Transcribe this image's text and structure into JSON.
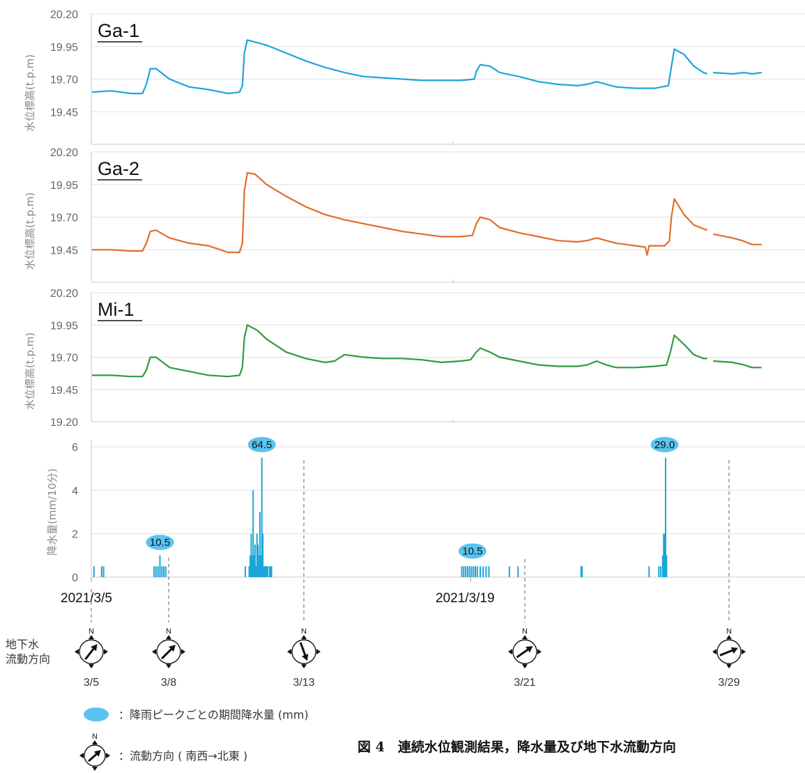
{
  "chart_data": [
    {
      "type": "line",
      "station": "Ga-1",
      "ylabel": "水位標高(t.p.m)",
      "yticks": [
        "20.20",
        "19.95",
        "19.70",
        "19.45"
      ],
      "ylim": [
        19.2,
        20.2
      ],
      "color": "#1ba6d8",
      "series": [
        {
          "points": [
            [
              0,
              19.6
            ],
            [
              1,
              19.61
            ],
            [
              1.5,
              19.6
            ],
            [
              2,
              19.59
            ],
            [
              2.6,
              19.59
            ],
            [
              2.8,
              19.66
            ],
            [
              3,
              19.78
            ],
            [
              3.3,
              19.78
            ],
            [
              4,
              19.7
            ],
            [
              5,
              19.64
            ],
            [
              6,
              19.62
            ],
            [
              7,
              19.59
            ],
            [
              7.6,
              19.6
            ],
            [
              7.75,
              19.65
            ],
            [
              7.85,
              19.9
            ],
            [
              8,
              20.0
            ],
            [
              8.5,
              19.98
            ],
            [
              9,
              19.96
            ],
            [
              10,
              19.9
            ],
            [
              11,
              19.84
            ],
            [
              12,
              19.79
            ],
            [
              13,
              19.75
            ],
            [
              14,
              19.72
            ],
            [
              15,
              19.71
            ],
            [
              16,
              19.7
            ],
            [
              17,
              19.69
            ],
            [
              18,
              19.69
            ],
            [
              19,
              19.69
            ],
            [
              19.7,
              19.7
            ],
            [
              19.8,
              19.76
            ],
            [
              20,
              19.81
            ],
            [
              20.5,
              19.8
            ],
            [
              21,
              19.75
            ],
            [
              22,
              19.72
            ],
            [
              23,
              19.68
            ],
            [
              24,
              19.66
            ],
            [
              25,
              19.65
            ],
            [
              25.5,
              19.66
            ],
            [
              26,
              19.68
            ],
            [
              26.5,
              19.66
            ],
            [
              27,
              19.64
            ],
            [
              28,
              19.63
            ],
            [
              29,
              19.63
            ],
            [
              29.7,
              19.65
            ],
            [
              29.8,
              19.75
            ],
            [
              30,
              19.93
            ],
            [
              30.5,
              19.89
            ],
            [
              31,
              19.8
            ],
            [
              31.5,
              19.75
            ],
            [
              31.7,
              19.74
            ],
            null,
            [
              32,
              19.75
            ],
            [
              33,
              19.74
            ],
            [
              33.6,
              19.75
            ],
            [
              34,
              19.74
            ],
            [
              34.5,
              19.75
            ]
          ]
        }
      ]
    },
    {
      "type": "line",
      "station": "Ga-2",
      "ylabel": "水位標高(t.p.m)",
      "yticks": [
        "20.20",
        "19.95",
        "19.70",
        "19.45"
      ],
      "ylim": [
        19.2,
        20.2
      ],
      "color": "#e36c2a",
      "series": [
        {
          "points": [
            [
              0,
              19.45
            ],
            [
              1,
              19.45
            ],
            [
              2,
              19.44
            ],
            [
              2.6,
              19.44
            ],
            [
              2.8,
              19.5
            ],
            [
              3,
              19.59
            ],
            [
              3.3,
              19.6
            ],
            [
              4,
              19.54
            ],
            [
              5,
              19.5
            ],
            [
              6,
              19.48
            ],
            [
              7,
              19.43
            ],
            [
              7.6,
              19.43
            ],
            [
              7.75,
              19.5
            ],
            [
              7.85,
              19.9
            ],
            [
              8,
              20.04
            ],
            [
              8.4,
              20.03
            ],
            [
              9,
              19.95
            ],
            [
              10,
              19.86
            ],
            [
              11,
              19.78
            ],
            [
              12,
              19.72
            ],
            [
              13,
              19.68
            ],
            [
              14,
              19.65
            ],
            [
              15,
              19.62
            ],
            [
              16,
              19.59
            ],
            [
              17,
              19.57
            ],
            [
              18,
              19.55
            ],
            [
              19,
              19.55
            ],
            [
              19.6,
              19.56
            ],
            [
              19.8,
              19.65
            ],
            [
              20,
              19.7
            ],
            [
              20.5,
              19.68
            ],
            [
              21,
              19.62
            ],
            [
              22,
              19.58
            ],
            [
              23,
              19.55
            ],
            [
              24,
              19.52
            ],
            [
              25,
              19.51
            ],
            [
              25.5,
              19.52
            ],
            [
              26,
              19.54
            ],
            [
              26.5,
              19.52
            ],
            [
              27,
              19.5
            ],
            [
              28,
              19.48
            ],
            [
              28.5,
              19.47
            ],
            [
              28.6,
              19.41
            ],
            [
              28.7,
              19.48
            ],
            [
              29,
              19.48
            ],
            [
              29.5,
              19.48
            ],
            [
              29.75,
              19.52
            ],
            [
              29.85,
              19.7
            ],
            [
              30,
              19.84
            ],
            [
              30.5,
              19.72
            ],
            [
              31,
              19.64
            ],
            [
              31.5,
              19.61
            ],
            [
              31.7,
              19.6
            ],
            null,
            [
              32,
              19.57
            ],
            [
              33,
              19.54
            ],
            [
              33.5,
              19.52
            ],
            [
              34,
              19.49
            ],
            [
              34.5,
              19.49
            ]
          ]
        }
      ]
    },
    {
      "type": "line",
      "station": "Mi-1",
      "ylabel": "水位標高(t.p.m)",
      "yticks": [
        "20.20",
        "19.95",
        "19.70",
        "19.45",
        "19.20"
      ],
      "ylim": [
        19.2,
        20.2
      ],
      "color": "#2f9a3f",
      "series": [
        {
          "points": [
            [
              0,
              19.56
            ],
            [
              1,
              19.56
            ],
            [
              2,
              19.55
            ],
            [
              2.6,
              19.55
            ],
            [
              2.8,
              19.6
            ],
            [
              3,
              19.7
            ],
            [
              3.3,
              19.7
            ],
            [
              4,
              19.62
            ],
            [
              5,
              19.59
            ],
            [
              6,
              19.56
            ],
            [
              7,
              19.55
            ],
            [
              7.6,
              19.56
            ],
            [
              7.75,
              19.62
            ],
            [
              7.85,
              19.85
            ],
            [
              8,
              19.95
            ],
            [
              8.5,
              19.91
            ],
            [
              9,
              19.84
            ],
            [
              10,
              19.74
            ],
            [
              11,
              19.69
            ],
            [
              12,
              19.66
            ],
            [
              12.5,
              19.67
            ],
            [
              13,
              19.72
            ],
            [
              14,
              19.7
            ],
            [
              15,
              19.69
            ],
            [
              16,
              19.69
            ],
            [
              17,
              19.68
            ],
            [
              18,
              19.66
            ],
            [
              19,
              19.67
            ],
            [
              19.5,
              19.68
            ],
            [
              19.8,
              19.74
            ],
            [
              20,
              19.77
            ],
            [
              20.5,
              19.74
            ],
            [
              21,
              19.7
            ],
            [
              22,
              19.67
            ],
            [
              23,
              19.64
            ],
            [
              24,
              19.63
            ],
            [
              25,
              19.63
            ],
            [
              25.5,
              19.64
            ],
            [
              26,
              19.67
            ],
            [
              26.5,
              19.64
            ],
            [
              27,
              19.62
            ],
            [
              28,
              19.62
            ],
            [
              29,
              19.63
            ],
            [
              29.6,
              19.64
            ],
            [
              29.8,
              19.74
            ],
            [
              30,
              19.87
            ],
            [
              30.5,
              19.8
            ],
            [
              31,
              19.72
            ],
            [
              31.5,
              19.69
            ],
            [
              31.7,
              19.69
            ],
            null,
            [
              32,
              19.67
            ],
            [
              33,
              19.66
            ],
            [
              33.6,
              19.64
            ],
            [
              34,
              19.62
            ],
            [
              34.5,
              19.62
            ]
          ]
        }
      ]
    },
    {
      "type": "bar",
      "ylabel": "降水量(mm/10分)",
      "yticks": [
        "6",
        "4",
        "2",
        "0"
      ],
      "ylim": [
        0,
        6
      ],
      "xticklabels": [
        "2021/3/5",
        "2021/3/19"
      ],
      "color": "#1ba6d8",
      "bars": [
        [
          0.1,
          0.5
        ],
        [
          0.5,
          0.5
        ],
        [
          0.6,
          0.5
        ],
        [
          3.2,
          0.5
        ],
        [
          3.3,
          0.5
        ],
        [
          3.4,
          0.5
        ],
        [
          3.5,
          1.0
        ],
        [
          3.6,
          0.5
        ],
        [
          3.7,
          0.5
        ],
        [
          3.8,
          0.5
        ],
        [
          7.9,
          0.5
        ],
        [
          8.1,
          0.5
        ],
        [
          8.15,
          1.0
        ],
        [
          8.2,
          2.0
        ],
        [
          8.25,
          1.0
        ],
        [
          8.3,
          4.0
        ],
        [
          8.35,
          1.0
        ],
        [
          8.4,
          1.5
        ],
        [
          8.45,
          0.5
        ],
        [
          8.5,
          2.0
        ],
        [
          8.55,
          1.5
        ],
        [
          8.6,
          1.0
        ],
        [
          8.65,
          3.0
        ],
        [
          8.7,
          1.0
        ],
        [
          8.75,
          5.5
        ],
        [
          8.8,
          2.0
        ],
        [
          8.85,
          0.5
        ],
        [
          8.9,
          0.5
        ],
        [
          8.95,
          0.5
        ],
        [
          9.0,
          0.5
        ],
        [
          9.05,
          0.5
        ],
        [
          9.15,
          0.5
        ],
        [
          9.2,
          0.5
        ],
        [
          9.25,
          0.5
        ],
        [
          19.05,
          0.5
        ],
        [
          19.15,
          0.5
        ],
        [
          19.25,
          0.5
        ],
        [
          19.35,
          0.5
        ],
        [
          19.45,
          0.5
        ],
        [
          19.55,
          0.5
        ],
        [
          19.65,
          0.5
        ],
        [
          19.75,
          0.5
        ],
        [
          19.85,
          0.5
        ],
        [
          20.0,
          0.5
        ],
        [
          20.15,
          0.5
        ],
        [
          20.3,
          0.5
        ],
        [
          20.45,
          0.5
        ],
        [
          21.5,
          0.5
        ],
        [
          21.95,
          0.5
        ],
        [
          25.2,
          0.5
        ],
        [
          25.25,
          0.5
        ],
        [
          28.7,
          0.5
        ],
        [
          29.2,
          0.5
        ],
        [
          29.3,
          0.5
        ],
        [
          29.4,
          1.0
        ],
        [
          29.45,
          2.0
        ],
        [
          29.5,
          2.0
        ],
        [
          29.55,
          5.5
        ],
        [
          29.6,
          1.0
        ]
      ],
      "annotations": [
        {
          "label": "10.5",
          "x": 3.5,
          "y": 1.6
        },
        {
          "label": "64.5",
          "x": 8.75,
          "y": 6.1
        },
        {
          "label": "10.5",
          "x": 19.6,
          "y": 1.2
        },
        {
          "label": "29.0",
          "x": 29.5,
          "y": 6.1
        }
      ]
    }
  ],
  "flow_direction": {
    "label_line1": "地下水",
    "label_line2": "流動方向",
    "north_label": "N",
    "dates": [
      {
        "label": "3/5",
        "day": 0,
        "angle": 38
      },
      {
        "label": "3/8",
        "day": 3,
        "angle": 45
      },
      {
        "label": "3/13",
        "day": 8,
        "angle": 160
      },
      {
        "label": "3/21",
        "day": 16,
        "angle": 55
      },
      {
        "label": "3/29",
        "day": 24,
        "angle": 68
      }
    ]
  },
  "legend": {
    "rain_label": "：降雨ピークごとの期間降水量 (mm)",
    "flow_label": "：流動方向 ( 南西→北東 )",
    "north_label": "N"
  },
  "caption": "図 4　連続水位観測結果，降水量及び地下水流動方向"
}
